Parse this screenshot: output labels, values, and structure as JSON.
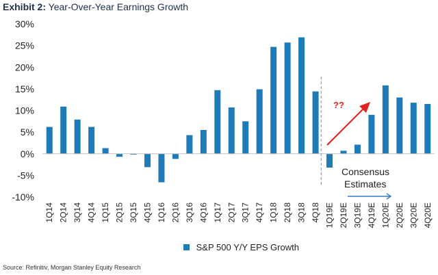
{
  "header": {
    "exhibit_label": "Exhibit 2:",
    "title": "Year-Over-Year Earnings Growth"
  },
  "source_note": "Source: Refinitiv, Morgan Stanley Equity Research",
  "colors": {
    "bar": "#1f7bb8",
    "axis_text": "#222222",
    "divider": "#6fa3d6",
    "arrow": "#e0231c",
    "estimate_arrow": "#2e7bc8"
  },
  "annotations": {
    "question": "??",
    "estimates_line1": "Consensus",
    "estimates_line2": "Estimates"
  },
  "chart_data": {
    "type": "bar",
    "title": "Year-Over-Year Earnings Growth",
    "xlabel": "",
    "ylabel": "",
    "ylim": [
      -10,
      30
    ],
    "yticks": [
      30,
      25,
      20,
      15,
      10,
      5,
      0,
      -5,
      -10
    ],
    "ytick_labels": [
      "30%",
      "25%",
      "20%",
      "15%",
      "10%",
      "5%",
      "0%",
      "-5%",
      "-10%"
    ],
    "legend": {
      "position": "bottom-center",
      "entries": [
        "S&P 500 Y/Y EPS Growth"
      ]
    },
    "categories": [
      "1Q14",
      "2Q14",
      "3Q14",
      "4Q14",
      "1Q15",
      "2Q15",
      "3Q15",
      "4Q15",
      "1Q16",
      "2Q16",
      "3Q16",
      "4Q16",
      "1Q17",
      "2Q17",
      "3Q17",
      "4Q17",
      "1Q18",
      "2Q18",
      "3Q18",
      "4Q18",
      "1Q19E",
      "2Q19E",
      "3Q19E",
      "4Q19E",
      "1Q20E",
      "2Q20E",
      "3Q20E",
      "4Q20E"
    ],
    "series": [
      {
        "name": "S&P 500 Y/Y EPS Growth",
        "values": [
          6.2,
          10.9,
          7.9,
          6.2,
          1.3,
          -0.7,
          -0.2,
          -3.1,
          -6.6,
          -1.2,
          4.3,
          5.5,
          14.7,
          10.7,
          7.5,
          14.9,
          24.7,
          25.7,
          26.9,
          14.4,
          -3.2,
          0.7,
          2.1,
          9.0,
          15.8,
          13.0,
          11.8,
          11.5
        ]
      }
    ]
  }
}
